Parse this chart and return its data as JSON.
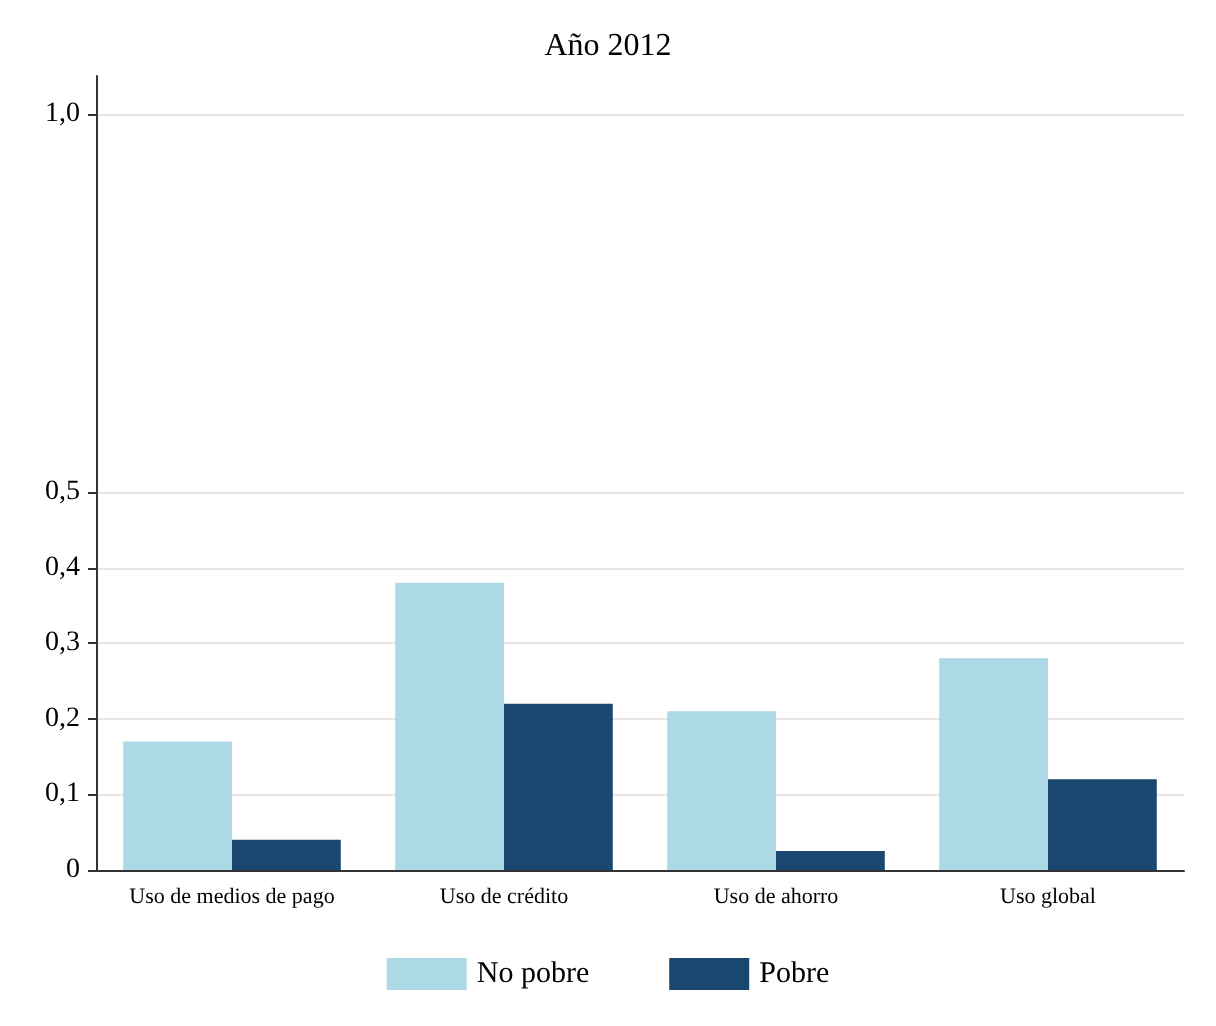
{
  "chart_data": {
    "type": "bar",
    "title": "Año 2012",
    "categories": [
      "Uso de medios de pago",
      "Uso de crédito",
      "Uso de ahorro",
      "Uso global"
    ],
    "series": [
      {
        "name": "No pobre",
        "color": "#add8e6",
        "values": [
          0.17,
          0.38,
          0.21,
          0.28
        ]
      },
      {
        "name": "Pobre",
        "color": "#1a476f",
        "values": [
          0.04,
          0.22,
          0.025,
          0.12
        ]
      }
    ],
    "ylim": [
      0,
      1.05
    ],
    "yticks": [
      0,
      {
        "value": 0.1,
        "label": "0,1"
      },
      {
        "value": 0.2,
        "label": "0,2"
      },
      {
        "value": 0.3,
        "label": "0,3"
      },
      {
        "value": 0.4,
        "label": "0,4"
      },
      {
        "value": 0.5,
        "label": "0,5"
      },
      {
        "value": 1,
        "label": "1,0"
      }
    ],
    "grid": "y",
    "legend": "bottom"
  }
}
